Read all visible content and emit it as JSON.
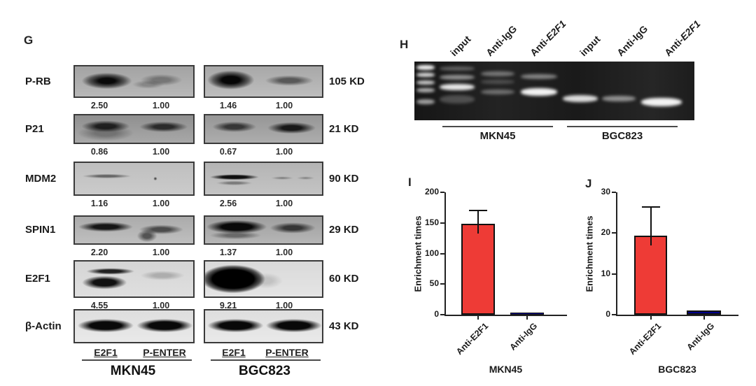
{
  "figure": {
    "panel_g": {
      "label": "G",
      "blots": [
        {
          "protein": "P-RB",
          "mw": "105 KD",
          "values": [
            "2.50",
            "1.00",
            "1.46",
            "1.00"
          ]
        },
        {
          "protein": "P21",
          "mw": "21 KD",
          "values": [
            "0.86",
            "1.00",
            "0.67",
            "1.00"
          ]
        },
        {
          "protein": "MDM2",
          "mw": "90 KD",
          "values": [
            "1.16",
            "1.00",
            "2.56",
            "1.00"
          ]
        },
        {
          "protein": "SPIN1",
          "mw": "29 KD",
          "values": [
            "2.20",
            "1.00",
            "1.37",
            "1.00"
          ]
        },
        {
          "protein": "E2F1",
          "mw": "60 KD",
          "values": [
            "4.55",
            "1.00",
            "9.21",
            "1.00"
          ]
        },
        {
          "protein": "β-Actin",
          "mw": "43 KD",
          "values": []
        }
      ],
      "lane_labels": [
        "E2F1",
        "P-ENTER",
        "E2F1",
        "P-ENTER"
      ],
      "cell_lines": [
        "MKN45",
        "BGC823"
      ]
    },
    "panel_h": {
      "label": "H",
      "lane_labels": [
        "input",
        "Anti-IgG",
        "Anti-E2F1",
        "input",
        "Anti-IgG",
        "Anti-E2F1"
      ],
      "group_labels": [
        "MKN45",
        "BGC823"
      ]
    }
  },
  "chart_data": [
    {
      "panel": "I",
      "type": "bar",
      "title": "",
      "categories": [
        "Anti-E2F1",
        "Anti-IgG"
      ],
      "values": [
        149,
        1
      ],
      "error_plus": [
        23,
        0
      ],
      "xlabel": "MKN45",
      "ylabel": "Enrichment times",
      "ylim": [
        0,
        200
      ],
      "yticks": [
        0,
        50,
        100,
        150,
        200
      ],
      "bar_colors": [
        "#ee3b36",
        "#00008b"
      ],
      "grid": false,
      "legend": "none"
    },
    {
      "panel": "J",
      "type": "bar",
      "title": "",
      "categories": [
        "Anti-E2F1",
        "Anti-IgG"
      ],
      "values": [
        19.3,
        1
      ],
      "error_plus": [
        7.2,
        0
      ],
      "xlabel": "BGC823",
      "ylabel": "Enrichment times",
      "ylim": [
        0,
        30
      ],
      "yticks": [
        0,
        10,
        20,
        30
      ],
      "bar_colors": [
        "#ee3b36",
        "#00008b"
      ],
      "grid": false,
      "legend": "none"
    }
  ]
}
